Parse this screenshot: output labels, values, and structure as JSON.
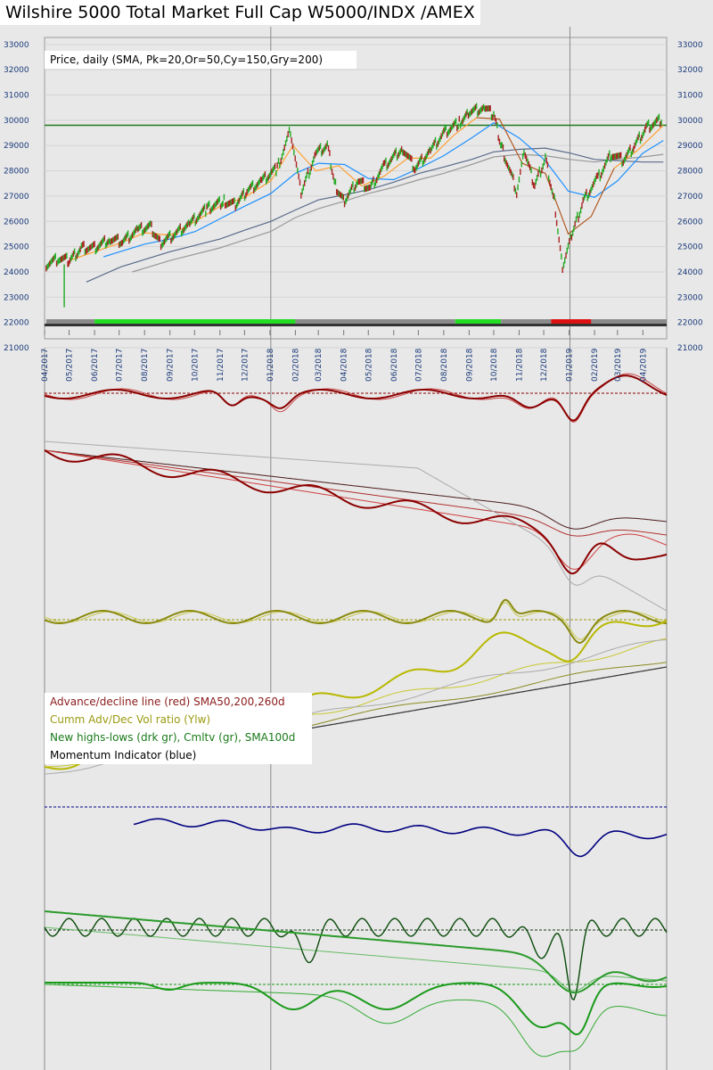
{
  "header": {
    "title": "Wilshire 5000 Total Market Full Cap W5000/INDX /AMEX",
    "sma_label": "Price, daily (SMA, Pk=20,Or=50,Cy=150,Gry=200)"
  },
  "legend": [
    {
      "text": "Advance/decline line (red) SMA50,200,260d",
      "color": "#8b1a1a"
    },
    {
      "text": "Cumm Adv/Dec Vol ratio (Ylw)",
      "color": "#9a9a10"
    },
    {
      "text": "New highs-lows (drk gr), Cmltv (gr), SMA100d",
      "color": "#1a7a1a"
    },
    {
      "text": "Momentum Indicator (blue)",
      "color": "#000000"
    }
  ],
  "chart_data": {
    "type": "line",
    "x_ticks": [
      "04/2017",
      "05/2017",
      "06/2017",
      "07/2017",
      "08/2017",
      "09/2017",
      "10/2017",
      "11/2017",
      "12/2017",
      "01/2018",
      "02/2018",
      "03/2018",
      "04/2018",
      "05/2018",
      "06/2018",
      "07/2018",
      "08/2018",
      "09/2018",
      "10/2018",
      "11/2018",
      "12/2018",
      "01/2019",
      "02/2019",
      "03/2019",
      "04/2019"
    ],
    "y_ticks": [
      21000,
      22000,
      23000,
      24000,
      25000,
      26000,
      27000,
      28000,
      29000,
      30000,
      31000,
      32000,
      33000
    ],
    "ylim": [
      21000,
      33700
    ],
    "horizontal_line": 29800,
    "price": [
      {
        "date": "2017-04-03",
        "v": 24300
      },
      {
        "date": "2017-04-20",
        "v": 24550
      },
      {
        "date": "2017-05-02",
        "v": 24450
      },
      {
        "date": "2017-05-16",
        "v": 24950
      },
      {
        "date": "2017-06-01",
        "v": 24950
      },
      {
        "date": "2017-06-20",
        "v": 25300
      },
      {
        "date": "2017-07-05",
        "v": 25200
      },
      {
        "date": "2017-07-24",
        "v": 25650
      },
      {
        "date": "2017-08-08",
        "v": 25800
      },
      {
        "date": "2017-08-21",
        "v": 25150
      },
      {
        "date": "2017-09-05",
        "v": 25450
      },
      {
        "date": "2017-09-25",
        "v": 25900
      },
      {
        "date": "2017-10-16",
        "v": 26500
      },
      {
        "date": "2017-11-06",
        "v": 26800
      },
      {
        "date": "2017-11-20",
        "v": 26650
      },
      {
        "date": "2017-12-04",
        "v": 27200
      },
      {
        "date": "2017-12-22",
        "v": 27600
      },
      {
        "date": "2018-01-10",
        "v": 28100
      },
      {
        "date": "2018-01-26",
        "v": 29600
      },
      {
        "date": "2018-02-08",
        "v": 27100
      },
      {
        "date": "2018-02-26",
        "v": 28700
      },
      {
        "date": "2018-03-12",
        "v": 29000
      },
      {
        "date": "2018-03-22",
        "v": 27400
      },
      {
        "date": "2018-04-02",
        "v": 26800
      },
      {
        "date": "2018-04-18",
        "v": 27600
      },
      {
        "date": "2018-05-03",
        "v": 27300
      },
      {
        "date": "2018-05-21",
        "v": 28200
      },
      {
        "date": "2018-06-12",
        "v": 28900
      },
      {
        "date": "2018-06-27",
        "v": 28100
      },
      {
        "date": "2018-07-16",
        "v": 28800
      },
      {
        "date": "2018-08-01",
        "v": 29500
      },
      {
        "date": "2018-08-20",
        "v": 29900
      },
      {
        "date": "2018-08-31",
        "v": 30300
      },
      {
        "date": "2018-09-20",
        "v": 30500
      },
      {
        "date": "2018-10-01",
        "v": 30200
      },
      {
        "date": "2018-10-11",
        "v": 28900
      },
      {
        "date": "2018-10-29",
        "v": 27200
      },
      {
        "date": "2018-11-07",
        "v": 28800
      },
      {
        "date": "2018-11-20",
        "v": 27400
      },
      {
        "date": "2018-12-03",
        "v": 28500
      },
      {
        "date": "2018-12-14",
        "v": 26800
      },
      {
        "date": "2018-12-24",
        "v": 24200
      },
      {
        "date": "2019-01-04",
        "v": 25400
      },
      {
        "date": "2019-01-18",
        "v": 26800
      },
      {
        "date": "2019-02-05",
        "v": 27700
      },
      {
        "date": "2019-02-22",
        "v": 28700
      },
      {
        "date": "2019-03-08",
        "v": 28400
      },
      {
        "date": "2019-03-22",
        "v": 29000
      },
      {
        "date": "2019-04-05",
        "v": 29700
      },
      {
        "date": "2019-04-25",
        "v": 30050
      }
    ],
    "sma20": [
      {
        "date": "2017-05-01",
        "v": 24450
      },
      {
        "date": "2017-06-01",
        "v": 24800
      },
      {
        "date": "2017-07-03",
        "v": 25150
      },
      {
        "date": "2017-08-01",
        "v": 25550
      },
      {
        "date": "2017-09-01",
        "v": 25450
      },
      {
        "date": "2017-10-02",
        "v": 26000
      },
      {
        "date": "2017-11-01",
        "v": 26600
      },
      {
        "date": "2017-12-01",
        "v": 26950
      },
      {
        "date": "2018-01-02",
        "v": 27600
      },
      {
        "date": "2018-01-29",
        "v": 29000
      },
      {
        "date": "2018-02-26",
        "v": 28000
      },
      {
        "date": "2018-03-26",
        "v": 28200
      },
      {
        "date": "2018-04-23",
        "v": 27400
      },
      {
        "date": "2018-05-21",
        "v": 27800
      },
      {
        "date": "2018-06-18",
        "v": 28500
      },
      {
        "date": "2018-07-16",
        "v": 28500
      },
      {
        "date": "2018-08-13",
        "v": 29400
      },
      {
        "date": "2018-09-10",
        "v": 30100
      },
      {
        "date": "2018-10-08",
        "v": 30050
      },
      {
        "date": "2018-11-05",
        "v": 28300
      },
      {
        "date": "2018-12-03",
        "v": 27900
      },
      {
        "date": "2018-12-31",
        "v": 25500
      },
      {
        "date": "2019-01-28",
        "v": 26200
      },
      {
        "date": "2019-02-25",
        "v": 28100
      },
      {
        "date": "2019-03-25",
        "v": 28800
      },
      {
        "date": "2019-04-26",
        "v": 29800
      }
    ],
    "sma50": [
      {
        "date": "2017-06-12",
        "v": 24600
      },
      {
        "date": "2017-08-01",
        "v": 25100
      },
      {
        "date": "2017-09-01",
        "v": 25300
      },
      {
        "date": "2017-10-02",
        "v": 25600
      },
      {
        "date": "2017-11-01",
        "v": 26100
      },
      {
        "date": "2017-12-01",
        "v": 26600
      },
      {
        "date": "2018-01-02",
        "v": 27100
      },
      {
        "date": "2018-02-01",
        "v": 27900
      },
      {
        "date": "2018-03-01",
        "v": 28300
      },
      {
        "date": "2018-04-02",
        "v": 28250
      },
      {
        "date": "2018-05-01",
        "v": 27700
      },
      {
        "date": "2018-06-01",
        "v": 27650
      },
      {
        "date": "2018-07-02",
        "v": 28100
      },
      {
        "date": "2018-08-01",
        "v": 28600
      },
      {
        "date": "2018-09-04",
        "v": 29300
      },
      {
        "date": "2018-10-01",
        "v": 29900
      },
      {
        "date": "2018-11-01",
        "v": 29300
      },
      {
        "date": "2018-12-03",
        "v": 28400
      },
      {
        "date": "2018-12-31",
        "v": 27200
      },
      {
        "date": "2019-02-01",
        "v": 26950
      },
      {
        "date": "2019-03-01",
        "v": 27600
      },
      {
        "date": "2019-04-01",
        "v": 28700
      },
      {
        "date": "2019-04-26",
        "v": 29200
      }
    ],
    "sma150": [
      {
        "date": "2017-05-22",
        "v": 23600
      },
      {
        "date": "2017-07-03",
        "v": 24200
      },
      {
        "date": "2017-09-01",
        "v": 24800
      },
      {
        "date": "2017-11-01",
        "v": 25300
      },
      {
        "date": "2017-12-01",
        "v": 25650
      },
      {
        "date": "2018-01-02",
        "v": 26000
      },
      {
        "date": "2018-02-01",
        "v": 26450
      },
      {
        "date": "2018-03-01",
        "v": 26850
      },
      {
        "date": "2018-04-02",
        "v": 27050
      },
      {
        "date": "2018-05-01",
        "v": 27250
      },
      {
        "date": "2018-06-01",
        "v": 27550
      },
      {
        "date": "2018-07-02",
        "v": 27900
      },
      {
        "date": "2018-08-01",
        "v": 28150
      },
      {
        "date": "2018-09-04",
        "v": 28450
      },
      {
        "date": "2018-10-01",
        "v": 28750
      },
      {
        "date": "2018-11-01",
        "v": 28850
      },
      {
        "date": "2018-12-03",
        "v": 28900
      },
      {
        "date": "2019-01-02",
        "v": 28700
      },
      {
        "date": "2019-02-01",
        "v": 28450
      },
      {
        "date": "2019-03-01",
        "v": 28400
      },
      {
        "date": "2019-04-01",
        "v": 28350
      },
      {
        "date": "2019-04-26",
        "v": 28350
      }
    ],
    "sma200": [
      {
        "date": "2017-07-17",
        "v": 24000
      },
      {
        "date": "2017-09-01",
        "v": 24450
      },
      {
        "date": "2017-11-01",
        "v": 24950
      },
      {
        "date": "2018-01-02",
        "v": 25600
      },
      {
        "date": "2018-02-01",
        "v": 26150
      },
      {
        "date": "2018-03-01",
        "v": 26500
      },
      {
        "date": "2018-04-02",
        "v": 26800
      },
      {
        "date": "2018-05-01",
        "v": 27100
      },
      {
        "date": "2018-06-01",
        "v": 27350
      },
      {
        "date": "2018-07-02",
        "v": 27650
      },
      {
        "date": "2018-08-01",
        "v": 27900
      },
      {
        "date": "2018-09-04",
        "v": 28250
      },
      {
        "date": "2018-10-01",
        "v": 28550
      },
      {
        "date": "2018-11-01",
        "v": 28650
      },
      {
        "date": "2018-12-03",
        "v": 28600
      },
      {
        "date": "2019-01-02",
        "v": 28450
      },
      {
        "date": "2019-02-01",
        "v": 28350
      },
      {
        "date": "2019-03-01",
        "v": 28450
      },
      {
        "date": "2019-04-01",
        "v": 28550
      },
      {
        "date": "2019-04-26",
        "v": 28650
      }
    ],
    "trend_bar": [
      {
        "start": "2017-04-03",
        "end": "2017-06-01",
        "state": "neutral"
      },
      {
        "start": "2017-06-01",
        "end": "2018-02-01",
        "state": "up"
      },
      {
        "start": "2018-02-01",
        "end": "2018-08-15",
        "state": "neutral"
      },
      {
        "start": "2018-08-15",
        "end": "2018-10-10",
        "state": "up"
      },
      {
        "start": "2018-10-10",
        "end": "2018-12-10",
        "state": "neutral"
      },
      {
        "start": "2018-12-10",
        "end": "2019-01-28",
        "state": "down"
      },
      {
        "start": "2019-01-28",
        "end": "2019-04-30",
        "state": "neutral"
      }
    ]
  }
}
